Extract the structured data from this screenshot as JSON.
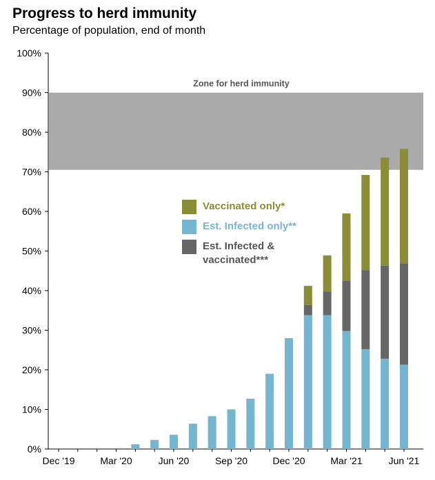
{
  "title": "Progress to herd immunity",
  "subtitle": "Percentage of population, end of month",
  "colors": {
    "vaccinated": "#8a8c36",
    "infected": "#74b5d0",
    "both": "#666666",
    "zone": "#aaaaaa",
    "zone_label": "#555555"
  },
  "legend": [
    {
      "key": "vaccinated",
      "label": "Vaccinated only*",
      "color": "#8a8c36"
    },
    {
      "key": "infected",
      "label": "Est. Infected only**",
      "color": "#74b5d0"
    },
    {
      "key": "both",
      "label": "Est. Infected & vaccinated***",
      "color": "#666666"
    }
  ],
  "chart_data": {
    "type": "bar",
    "stacked": true,
    "title": "Progress to herd immunity",
    "subtitle": "Percentage of population, end of month",
    "ylim": [
      0,
      100
    ],
    "yticks": [
      "0%",
      "10%",
      "20%",
      "30%",
      "40%",
      "50%",
      "60%",
      "70%",
      "80%",
      "90%",
      "100%"
    ],
    "categories": [
      "Dec '19",
      "Jan '20",
      "Feb '20",
      "Mar '20",
      "Apr '20",
      "May '20",
      "Jun '20",
      "Jul '20",
      "Aug '20",
      "Sep '20",
      "Oct '20",
      "Nov '20",
      "Dec '20",
      "Jan '21",
      "Feb '21",
      "Mar '21",
      "Apr '21",
      "May '21",
      "Jun '21"
    ],
    "xtick_labels": [
      {
        "label": "Dec '19",
        "index": 0
      },
      {
        "label": "Mar '20",
        "index": 3
      },
      {
        "label": "Jun '20",
        "index": 6
      },
      {
        "label": "Sep '20",
        "index": 9
      },
      {
        "label": "Dec '20",
        "index": 12
      },
      {
        "label": "Mar '21",
        "index": 15
      },
      {
        "label": "Jun '21",
        "index": 18
      }
    ],
    "series": [
      {
        "key": "infected",
        "name": "Est. Infected only**",
        "color": "#74b5d0",
        "values": [
          0,
          0,
          0,
          0,
          1.2,
          2.3,
          3.6,
          6.4,
          8.3,
          10.0,
          12.7,
          19.0,
          28.0,
          33.8,
          33.8,
          29.8,
          25.2,
          22.8,
          21.3
        ]
      },
      {
        "key": "both",
        "name": "Est. Infected & vaccinated***",
        "color": "#666666",
        "values": [
          0,
          0,
          0,
          0,
          0,
          0,
          0,
          0,
          0,
          0,
          0,
          0,
          0,
          2.6,
          6.0,
          12.7,
          20.0,
          23.5,
          25.6
        ]
      },
      {
        "key": "vaccinated",
        "name": "Vaccinated only*",
        "color": "#8a8c36",
        "values": [
          0,
          0,
          0,
          0,
          0,
          0,
          0,
          0,
          0,
          0,
          0,
          0,
          0,
          4.8,
          9.1,
          17.0,
          24.0,
          27.3,
          28.9
        ]
      }
    ],
    "zone": {
      "label": "Zone for herd immunity",
      "from": 70.5,
      "to": 90
    }
  }
}
